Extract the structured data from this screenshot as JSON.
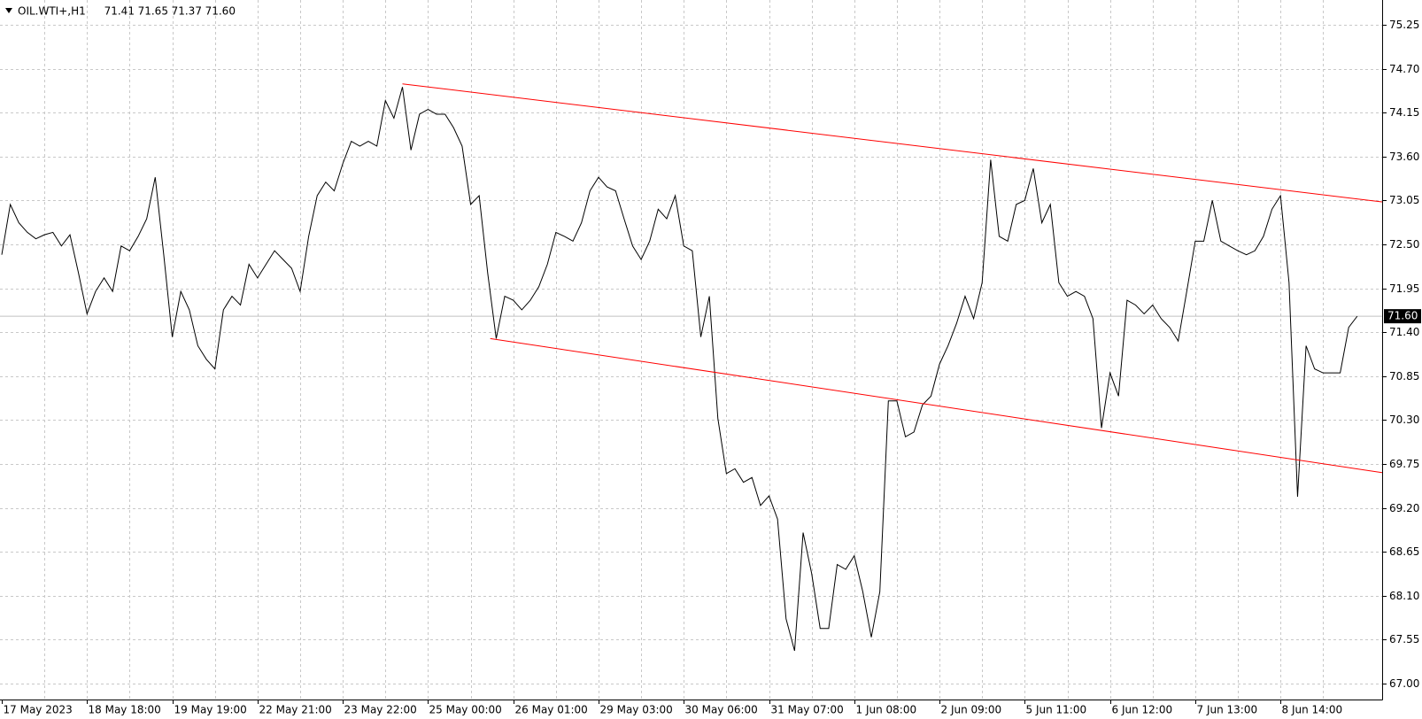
{
  "chart_data": {
    "type": "line",
    "title": "OIL.WTI+,H1",
    "last_bar": [
      {
        "value": 71.41,
        "label": "71.41"
      },
      {
        "value": 71.65,
        "label": "71.65"
      },
      {
        "value": 71.37,
        "label": "71.37"
      },
      {
        "value": 71.6,
        "label": "71.60"
      }
    ],
    "categories": [
      "17 May 2023",
      null,
      null,
      null,
      null,
      null,
      null,
      null,
      null,
      null,
      "18 May 18:00",
      null,
      null,
      null,
      null,
      null,
      null,
      null,
      null,
      null,
      "19 May 19:00",
      null,
      null,
      null,
      null,
      null,
      null,
      null,
      null,
      null,
      "22 May 21:00",
      null,
      null,
      null,
      null,
      null,
      null,
      null,
      null,
      null,
      "23 May 22:00",
      null,
      null,
      null,
      null,
      null,
      null,
      null,
      null,
      null,
      "25 May 00:00",
      null,
      null,
      null,
      null,
      null,
      null,
      null,
      null,
      null,
      "26 May 01:00",
      null,
      null,
      null,
      null,
      null,
      null,
      null,
      null,
      null,
      "29 May 03:00",
      null,
      null,
      null,
      null,
      null,
      null,
      null,
      null,
      null,
      "30 May 06:00",
      null,
      null,
      null,
      null,
      null,
      null,
      null,
      null,
      null,
      "31 May 07:00",
      null,
      null,
      null,
      null,
      null,
      null,
      null,
      null,
      null,
      "1 Jun 08:00",
      null,
      null,
      null,
      null,
      null,
      null,
      null,
      null,
      null,
      "2 Jun 09:00",
      null,
      null,
      null,
      null,
      null,
      null,
      null,
      null,
      null,
      "5 Jun 11:00",
      null,
      null,
      null,
      null,
      null,
      null,
      null,
      null,
      null,
      "6 Jun 12:00",
      null,
      null,
      null,
      null,
      null,
      null,
      null,
      null,
      null,
      "7 Jun 13:00",
      null,
      null,
      null,
      null,
      null,
      null,
      null,
      null,
      null,
      "8 Jun 14:00",
      null,
      null,
      null,
      null,
      null,
      null,
      null,
      null,
      null
    ],
    "series": [
      {
        "name": "OIL.WTI+",
        "color": "#000000",
        "values": [
          72.37,
          73.0,
          72.77,
          72.65,
          72.57,
          72.62,
          72.65,
          72.48,
          72.62,
          72.14,
          71.63,
          71.91,
          72.08,
          71.91,
          72.48,
          72.42,
          72.6,
          72.82,
          73.34,
          72.37,
          71.34,
          71.91,
          71.68,
          71.23,
          71.06,
          70.94,
          71.68,
          71.85,
          71.74,
          72.25,
          72.08,
          72.25,
          72.42,
          72.31,
          72.2,
          71.91,
          72.6,
          73.11,
          73.28,
          73.17,
          73.51,
          73.79,
          73.73,
          73.79,
          73.73,
          74.3,
          74.08,
          74.47,
          73.68,
          74.13,
          74.19,
          74.13,
          74.13,
          73.96,
          73.73,
          73.0,
          73.11,
          72.14,
          71.32,
          71.85,
          71.8,
          71.68,
          71.8,
          71.97,
          72.25,
          72.65,
          72.6,
          72.54,
          72.77,
          73.17,
          73.34,
          73.22,
          73.17,
          72.82,
          72.48,
          72.31,
          72.54,
          72.94,
          72.82,
          73.11,
          72.48,
          72.42,
          71.34,
          71.85,
          70.32,
          69.63,
          69.69,
          69.52,
          69.58,
          69.23,
          69.35,
          69.06,
          67.81,
          67.41,
          68.89,
          68.38,
          67.69,
          67.69,
          68.49,
          68.43,
          68.6,
          68.15,
          67.58,
          68.15,
          70.54,
          70.54,
          70.09,
          70.15,
          70.49,
          70.6,
          71.0,
          71.23,
          71.51,
          71.85,
          71.57,
          72.02,
          73.56,
          72.6,
          72.54,
          73.0,
          73.05,
          73.45,
          72.77,
          73.0,
          72.02,
          71.85,
          71.91,
          71.85,
          71.57,
          70.2,
          70.89,
          70.6,
          71.8,
          71.74,
          71.63,
          71.74,
          71.57,
          71.46,
          71.29,
          71.91,
          72.54,
          72.54,
          73.05,
          72.54,
          72.48,
          72.42,
          72.37,
          72.42,
          72.6,
          72.94,
          73.11,
          72.02,
          69.34,
          71.23,
          70.94,
          70.89,
          70.89,
          70.89,
          71.46,
          71.6
        ]
      }
    ],
    "trend_lines": [
      {
        "color": "#ff0000",
        "x": [
          47,
          162
        ],
        "y": [
          74.51,
          73.03
        ]
      },
      {
        "color": "#ff0000",
        "x": [
          57.3,
          162
        ],
        "y": [
          71.32,
          69.64
        ]
      }
    ],
    "price_line": {
      "value": 71.6,
      "label": "71.60"
    },
    "ylim": [
      66.8,
      75.56
    ],
    "yticks": [
      {
        "value": 67.0,
        "label": "67.00"
      },
      {
        "value": 67.55,
        "label": "67.55"
      },
      {
        "value": 68.1,
        "label": "68.10"
      },
      {
        "value": 68.65,
        "label": "68.65"
      },
      {
        "value": 69.2,
        "label": "69.20"
      },
      {
        "value": 69.75,
        "label": "69.75"
      },
      {
        "value": 70.3,
        "label": "70.30"
      },
      {
        "value": 70.85,
        "label": "70.85"
      },
      {
        "value": 71.4,
        "label": "71.40"
      },
      {
        "value": 71.95,
        "label": "71.95"
      },
      {
        "value": 72.5,
        "label": "72.50"
      },
      {
        "value": 73.05,
        "label": "73.05"
      },
      {
        "value": 73.6,
        "label": "73.60"
      },
      {
        "value": 74.15,
        "label": "74.15"
      },
      {
        "value": 74.7,
        "label": "74.70"
      },
      {
        "value": 75.25,
        "label": "75.25"
      }
    ],
    "grid": true
  }
}
